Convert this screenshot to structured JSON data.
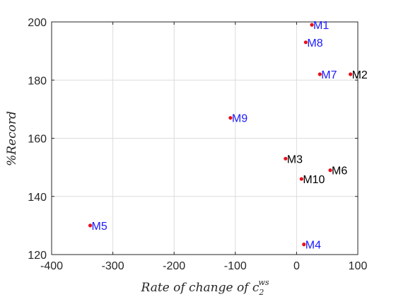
{
  "chart_data": {
    "type": "scatter",
    "title": "",
    "xlabel": "Rate of change of ",
    "xlabel_symbol": "c",
    "xlabel_sub": "2",
    "xlabel_sup": "ws",
    "ylabel": "%Record",
    "xlim": [
      -400,
      100
    ],
    "ylim": [
      120,
      200
    ],
    "xticks": [
      -400,
      -300,
      -200,
      -100,
      0,
      100
    ],
    "yticks": [
      120,
      140,
      160,
      180,
      200
    ],
    "grid": true,
    "marker_color": "#e8101a",
    "label_colors": {
      "blue": "#1a1aff",
      "black": "#000000"
    },
    "points": [
      {
        "label": "M1",
        "x": 25,
        "y": 199,
        "label_color": "blue"
      },
      {
        "label": "M8",
        "x": 15,
        "y": 193,
        "label_color": "blue"
      },
      {
        "label": "M7",
        "x": 38,
        "y": 182,
        "label_color": "blue"
      },
      {
        "label": "M2",
        "x": 88,
        "y": 182,
        "label_color": "black"
      },
      {
        "label": "M9",
        "x": -108,
        "y": 167,
        "label_color": "blue"
      },
      {
        "label": "M3",
        "x": -18,
        "y": 153,
        "label_color": "black"
      },
      {
        "label": "M6",
        "x": 55,
        "y": 149,
        "label_color": "black"
      },
      {
        "label": "M10",
        "x": 8,
        "y": 146,
        "label_color": "black"
      },
      {
        "label": "M5",
        "x": -337,
        "y": 130,
        "label_color": "blue"
      },
      {
        "label": "M4",
        "x": 12,
        "y": 123.5,
        "label_color": "blue"
      }
    ]
  }
}
